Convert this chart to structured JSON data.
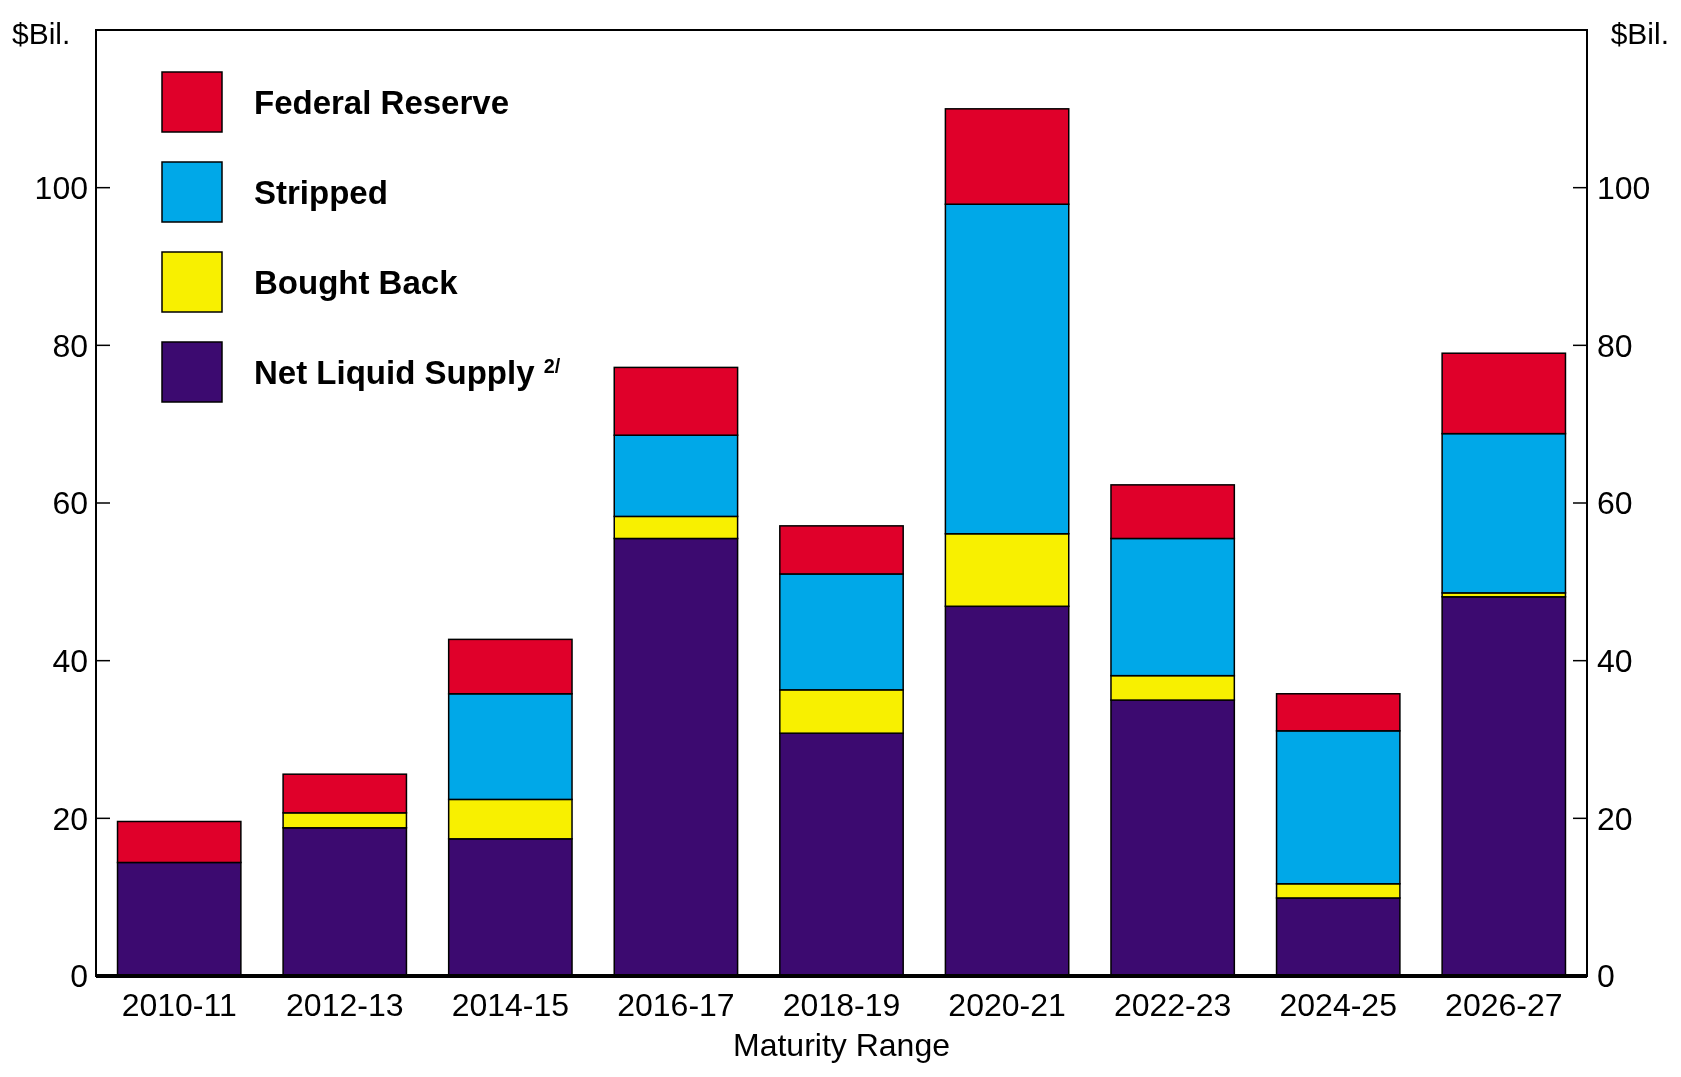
{
  "chart_data": {
    "type": "bar",
    "stacked": true,
    "xlabel": "Maturity Range",
    "ylabel": "$Bil.",
    "y2label": "$Bil.",
    "categories": [
      "2010-11",
      "2012-13",
      "2014-15",
      "2016-17",
      "2018-19",
      "2020-21",
      "2022-23",
      "2024-25",
      "2026-27"
    ],
    "series": [
      {
        "name": "Net Liquid Supply $^{2/}$",
        "color": "#3c0a70",
        "values": [
          14.4,
          18.8,
          17.4,
          55.5,
          30.8,
          46.9,
          35.0,
          9.9,
          48.1
        ]
      },
      {
        "name": "Bought Back",
        "color": "#f8f000",
        "values": [
          0,
          1.9,
          5.0,
          2.8,
          5.5,
          9.2,
          3.1,
          1.8,
          0.5
        ]
      },
      {
        "name": "Stripped",
        "color": "#00a8e8",
        "values": [
          0,
          0,
          13.4,
          10.3,
          14.7,
          41.8,
          17.4,
          19.4,
          20.2
        ]
      },
      {
        "name": "Federal Reserve",
        "color": "#e0002a",
        "values": [
          5.2,
          4.9,
          6.9,
          8.6,
          6.1,
          12.1,
          6.8,
          4.7,
          10.2
        ]
      }
    ],
    "ylim": [
      0,
      120
    ],
    "yticks": [
      0,
      20,
      40,
      60,
      80,
      100
    ],
    "y2lim": [
      0,
      120
    ],
    "y2ticks": [
      0,
      20,
      40,
      60,
      80,
      100
    ],
    "legend": "top left",
    "grid": false
  }
}
